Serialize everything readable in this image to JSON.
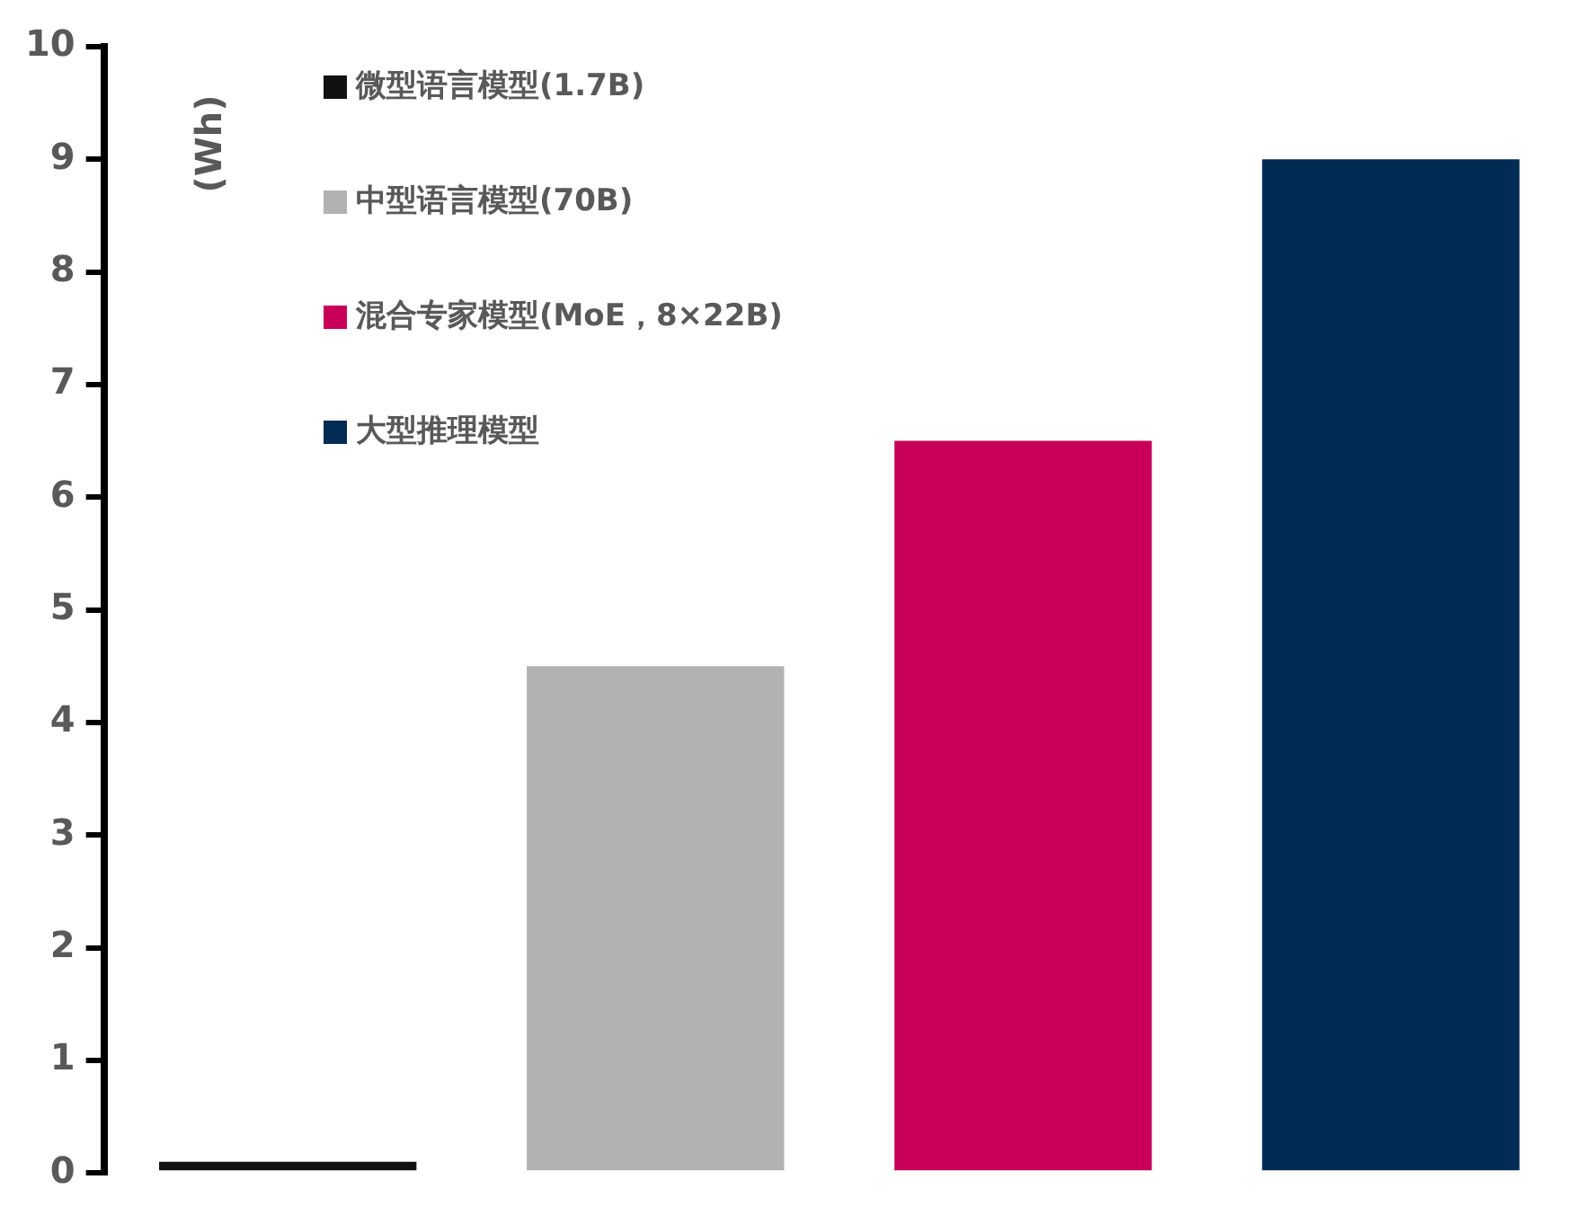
{
  "chart_data": {
    "type": "bar",
    "ylabel": "(Wh)",
    "categories": [
      null,
      null,
      null,
      null
    ],
    "series": [
      {
        "name": "微型语言模型(1.7B)",
        "color": "#111111",
        "values": [
          0.1,
          null,
          null,
          null
        ]
      },
      {
        "name": "中型语言模型(70B)",
        "color": "#b2b2b2",
        "values": [
          null,
          4.5,
          null,
          null
        ]
      },
      {
        "name": "混合专家模型(MoE，8×22B)",
        "color": "#c8005a",
        "values": [
          null,
          null,
          6.5,
          null
        ]
      },
      {
        "name": "大型推理模型",
        "color": "#002b52",
        "values": [
          null,
          null,
          null,
          9
        ]
      }
    ],
    "ylim": [
      0,
      10
    ],
    "yticks": [
      0,
      1,
      2,
      3,
      4,
      5,
      6,
      7,
      8,
      9,
      10
    ],
    "stacked": true,
    "grid": false,
    "legend": "top left"
  }
}
